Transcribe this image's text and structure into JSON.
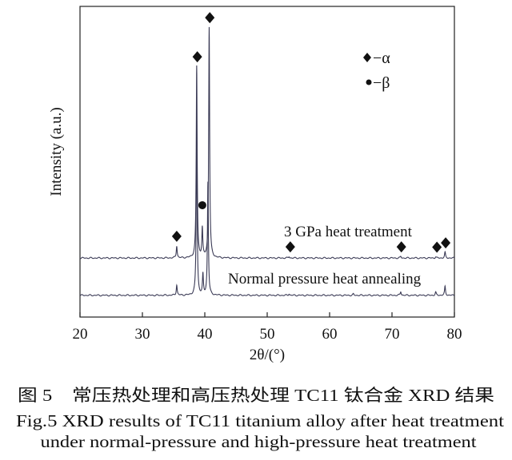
{
  "chart_data": {
    "type": "line",
    "xlabel": "2θ/(°)",
    "ylabel": "Intensity (a.u.)",
    "xlim": [
      20,
      80
    ],
    "ylim": [
      0,
      100
    ],
    "xticks": [
      "20",
      "30",
      "40",
      "50",
      "60",
      "70",
      "80"
    ],
    "grid": false,
    "line_color": "#3a3a55",
    "legend": [
      {
        "marker": "diamond",
        "label": "−α"
      },
      {
        "marker": "circle",
        "label": "−β"
      }
    ],
    "legend_placement": "top-right",
    "series": [
      {
        "name": "3 GPa heat treatment",
        "baseline": 19,
        "peaks": [
          [
            35.5,
            22.9
          ],
          [
            38.7,
            80.7
          ],
          [
            39.6,
            28.3
          ],
          [
            40.7,
            93.3
          ],
          [
            53.5,
            19.5
          ],
          [
            71.4,
            19.5
          ],
          [
            77.0,
            19.4
          ],
          [
            78.5,
            20.8
          ]
        ]
      },
      {
        "name": "Normal pressure heat annealing",
        "baseline": 7,
        "peaks": [
          [
            35.5,
            10.3
          ],
          [
            38.7,
            59.6
          ],
          [
            39.7,
            13.4
          ],
          [
            40.5,
            43.4
          ],
          [
            53.5,
            7.5
          ],
          [
            63.8,
            7.4
          ],
          [
            71.4,
            8.2
          ],
          [
            77.0,
            8.0
          ],
          [
            78.5,
            9.8
          ]
        ]
      }
    ],
    "markers": [
      {
        "phase": "α",
        "shape": "diamond",
        "x": 35.5
      },
      {
        "phase": "α",
        "shape": "diamond",
        "x": 38.8
      },
      {
        "phase": "α",
        "shape": "diamond",
        "x": 40.8
      },
      {
        "phase": "β",
        "shape": "circle",
        "x": 39.6
      },
      {
        "phase": "α",
        "shape": "diamond",
        "x": 53.7
      },
      {
        "phase": "α",
        "shape": "diamond",
        "x": 71.5
      },
      {
        "phase": "α",
        "shape": "diamond",
        "x": 77.2
      },
      {
        "phase": "α",
        "shape": "diamond",
        "x": 78.6
      }
    ]
  },
  "caption": {
    "chinese": "图 5　常压热处理和高压热处理 TC11 钛合金 XRD 结果",
    "english_line1": "Fig.5 XRD results of TC11 titanium alloy after heat treatment",
    "english_line2": "under normal-pressure and high-pressure heat treatment"
  }
}
